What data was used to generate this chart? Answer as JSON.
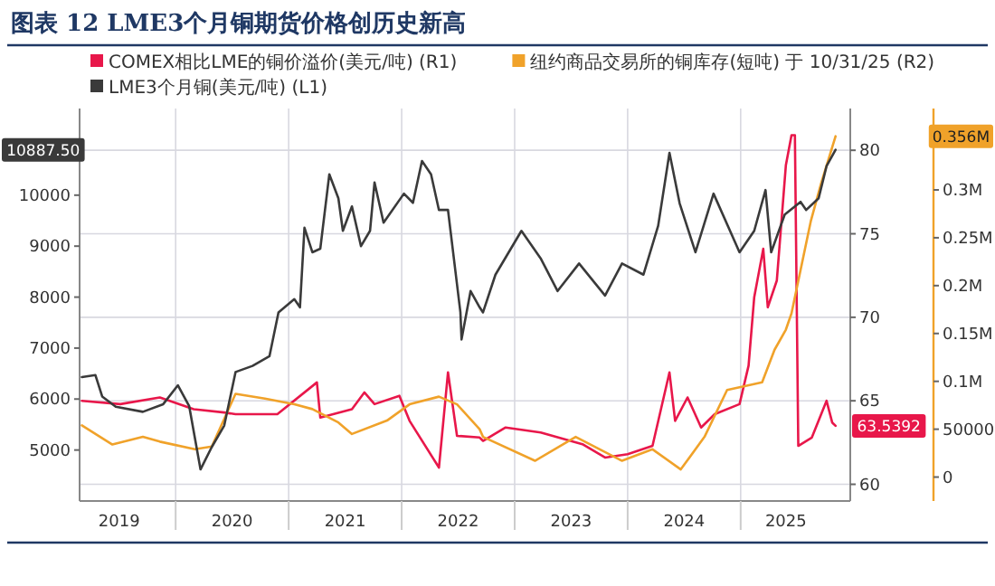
{
  "chart_data": {
    "type": "line",
    "title": "图表 12   LME3个月铜期货价格创历史新高",
    "xlim": [
      2019.15,
      2025.97
    ],
    "xticks": [
      {
        "value": 2020,
        "label": null
      },
      {
        "value": 2021,
        "label": null
      },
      {
        "value": 2022,
        "label": null
      },
      {
        "value": 2023,
        "label": null
      },
      {
        "value": 2024,
        "label": null
      },
      {
        "value": 2025,
        "label": null
      },
      {
        "value": 2019.5,
        "label": "2019"
      },
      {
        "value": 2020.5,
        "label": "2020"
      },
      {
        "value": 2021.5,
        "label": "2021"
      },
      {
        "value": 2022.5,
        "label": "2022"
      },
      {
        "value": 2023.5,
        "label": "2023"
      },
      {
        "value": 2024.5,
        "label": "2024"
      },
      {
        "value": 2025.4,
        "label": "2025"
      }
    ],
    "ylim": [
      4000,
      11700
    ],
    "yticks": [
      5000,
      6000,
      7000,
      8000,
      9000,
      10000
    ],
    "y2lim": [
      59,
      82.5
    ],
    "y2ticks": [
      60,
      65,
      70,
      75,
      80
    ],
    "y3lim": [
      -25000,
      385000
    ],
    "y3ticks": [
      0,
      50000,
      {
        "value": 100000,
        "label": "0.1M"
      },
      {
        "value": 150000,
        "label": "0.15M"
      },
      {
        "value": 200000,
        "label": "0.2M"
      },
      {
        "value": 250000,
        "label": "0.25M"
      },
      {
        "value": 300000,
        "label": "0.3M"
      }
    ],
    "grid": true,
    "legend": "top",
    "annotations": [
      "63.5392",
      "0.356M",
      "10887.50"
    ],
    "series": [
      {
        "name": "COMEX相比LME的铜价溢价(美元/吨) (R1)",
        "color": "#e8174a",
        "axis": "y2",
        "x": [
          2019.17,
          2019.51,
          2019.86,
          2020.16,
          2020.43,
          2020.53,
          2020.9,
          2021.25,
          2021.28,
          2021.56,
          2021.67,
          2021.76,
          2021.98,
          2022.07,
          2022.33,
          2022.41,
          2022.49,
          2022.69,
          2022.72,
          2022.92,
          2023.23,
          2023.6,
          2023.8,
          2024.0,
          2024.22,
          2024.37,
          2024.42,
          2024.53,
          2024.65,
          2024.77,
          2024.99,
          2025.07,
          2025.12,
          2025.2,
          2025.24,
          2025.32,
          2025.4,
          2025.45,
          2025.48,
          2025.51,
          2025.63,
          2025.76,
          2025.81,
          2025.84
        ],
        "values": [
          65.0,
          64.8,
          65.2,
          64.5,
          64.3,
          64.2,
          64.2,
          66.1,
          64.0,
          64.5,
          65.5,
          64.8,
          65.3,
          63.8,
          61.0,
          66.7,
          62.9,
          62.8,
          62.6,
          63.4,
          63.1,
          62.4,
          61.6,
          61.8,
          62.3,
          66.7,
          63.8,
          65.2,
          63.4,
          64.2,
          64.8,
          67.1,
          71.2,
          74.1,
          70.6,
          72.2,
          79.1,
          80.9,
          80.9,
          62.3,
          62.8,
          65.0,
          63.7,
          63.5
        ]
      },
      {
        "name": "纽约商品交易所的铜库存(短吨) 于 10/31/25 (R2)",
        "color": "#f0a22a",
        "axis": "y3",
        "x": [
          2019.17,
          2019.44,
          2019.71,
          2019.86,
          2020.17,
          2020.32,
          2020.53,
          2020.79,
          2021.05,
          2021.21,
          2021.44,
          2021.56,
          2021.87,
          2022.07,
          2022.33,
          2022.49,
          2022.69,
          2022.72,
          2023.18,
          2023.54,
          2023.95,
          2024.22,
          2024.47,
          2024.68,
          2024.88,
          2025.19,
          2025.3,
          2025.4,
          2025.45,
          2025.62,
          2025.71,
          2025.84
        ],
        "values": [
          54000,
          34000,
          42000,
          37000,
          29000,
          32000,
          87000,
          82000,
          76000,
          71000,
          57000,
          45000,
          59000,
          76000,
          84000,
          76000,
          50000,
          42000,
          17000,
          42000,
          17000,
          29000,
          8000,
          42000,
          91000,
          99000,
          133000,
          154000,
          171000,
          267000,
          306000,
          356000
        ]
      },
      {
        "name": "LME3个月铜(美元/吨) (L1)",
        "color": "#3a3a3a",
        "axis": "y",
        "x": [
          2019.17,
          2019.29,
          2019.35,
          2019.47,
          2019.71,
          2019.89,
          2020.02,
          2020.12,
          2020.22,
          2020.32,
          2020.43,
          2020.53,
          2020.68,
          2020.83,
          2020.91,
          2021.05,
          2021.1,
          2021.14,
          2021.21,
          2021.28,
          2021.36,
          2021.44,
          2021.48,
          2021.56,
          2021.64,
          2021.72,
          2021.76,
          2021.84,
          2022.02,
          2022.1,
          2022.18,
          2022.26,
          2022.33,
          2022.41,
          2022.52,
          2022.53,
          2022.61,
          2022.69,
          2022.72,
          2022.83,
          2023.06,
          2023.23,
          2023.38,
          2023.57,
          2023.8,
          2023.95,
          2024.14,
          2024.27,
          2024.37,
          2024.46,
          2024.6,
          2024.76,
          2024.99,
          2025.12,
          2025.22,
          2025.27,
          2025.39,
          2025.53,
          2025.58,
          2025.69,
          2025.76,
          2025.84
        ],
        "values": [
          6430,
          6470,
          6050,
          5850,
          5750,
          5900,
          6270,
          5860,
          4620,
          5060,
          5480,
          6530,
          6650,
          6840,
          7700,
          7960,
          7800,
          9360,
          8880,
          8950,
          10410,
          9940,
          9300,
          9780,
          9000,
          9300,
          10250,
          9460,
          10030,
          9850,
          10670,
          10410,
          9710,
          9710,
          7700,
          7170,
          8120,
          7800,
          7700,
          8440,
          9300,
          8760,
          8120,
          8660,
          8030,
          8660,
          8440,
          9400,
          10830,
          9840,
          8880,
          10030,
          8880,
          9300,
          10100,
          8880,
          9620,
          9870,
          9710,
          9940,
          10570,
          10890
        ]
      }
    ]
  }
}
